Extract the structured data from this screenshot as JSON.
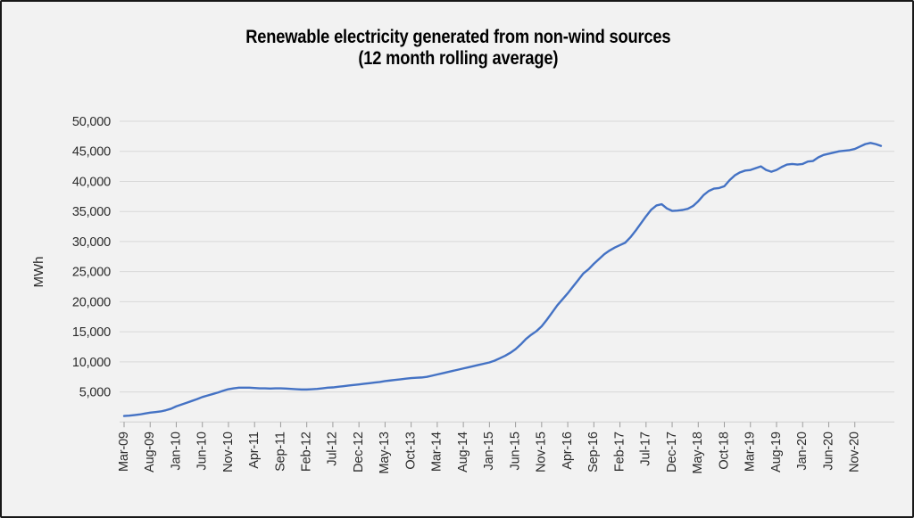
{
  "header": {
    "title_line1": "Renewable electricity generated from non-wind sources",
    "title_line2": "(12 month rolling average)"
  },
  "chart_data": {
    "type": "line",
    "title": "Renewable electricity generated from non-wind sources (12 month rolling average)",
    "xlabel": "",
    "ylabel": "MWh",
    "ylim": [
      0,
      50000
    ],
    "y_step": 5000,
    "grid": "horizontal",
    "legend": "none",
    "line_color": "#4472c4",
    "background_color": "#f2f2f2",
    "y_tick_labels": [
      "5,000",
      "10,000",
      "15,000",
      "20,000",
      "25,000",
      "30,000",
      "35,000",
      "40,000",
      "45,000",
      "50,000"
    ],
    "x_tick_labels": [
      "Mar-09",
      "Aug-09",
      "Jan-10",
      "Jun-10",
      "Nov-10",
      "Apr-11",
      "Sep-11",
      "Feb-12",
      "Jul-12",
      "Dec-12",
      "May-13",
      "Oct-13",
      "Mar-14",
      "Aug-14",
      "Jan-15",
      "Jun-15",
      "Nov-15",
      "Apr-16",
      "Sep-16",
      "Feb-17",
      "Jul-17",
      "Dec-17",
      "May-18",
      "Oct-18",
      "Mar-19",
      "Aug-19",
      "Jan-20",
      "Jun-20",
      "Nov-20"
    ],
    "x_tick_every_n_months": 5,
    "x_start": "Mar-09",
    "x_end": "Apr-21",
    "x_frequency": "monthly",
    "values": [
      1000,
      1050,
      1150,
      1250,
      1400,
      1550,
      1650,
      1750,
      1950,
      2200,
      2600,
      2900,
      3200,
      3500,
      3800,
      4150,
      4400,
      4650,
      4900,
      5200,
      5450,
      5600,
      5700,
      5700,
      5700,
      5650,
      5600,
      5600,
      5550,
      5600,
      5600,
      5550,
      5500,
      5450,
      5400,
      5400,
      5450,
      5500,
      5600,
      5700,
      5750,
      5850,
      5950,
      6050,
      6150,
      6250,
      6350,
      6450,
      6550,
      6650,
      6800,
      6900,
      7000,
      7100,
      7200,
      7300,
      7350,
      7400,
      7500,
      7700,
      7900,
      8100,
      8300,
      8500,
      8700,
      8900,
      9100,
      9300,
      9500,
      9700,
      9900,
      10200,
      10600,
      11000,
      11500,
      12100,
      12900,
      13800,
      14500,
      15100,
      15900,
      17000,
      18200,
      19400,
      20400,
      21400,
      22500,
      23600,
      24700,
      25400,
      26300,
      27100,
      27900,
      28500,
      29000,
      29400,
      29800,
      30700,
      31800,
      33000,
      34200,
      35300,
      36000,
      36200,
      35500,
      35100,
      35150,
      35250,
      35450,
      35900,
      36700,
      37700,
      38400,
      38800,
      38900,
      39200,
      40200,
      41000,
      41500,
      41800,
      41900,
      42200,
      42500,
      41900,
      41600,
      41900,
      42400,
      42800,
      42900,
      42800,
      42900,
      43300,
      43400,
      44000,
      44400,
      44600,
      44800,
      45000,
      45100,
      45200,
      45400,
      45800,
      46200,
      46400,
      46200,
      45900
    ]
  }
}
